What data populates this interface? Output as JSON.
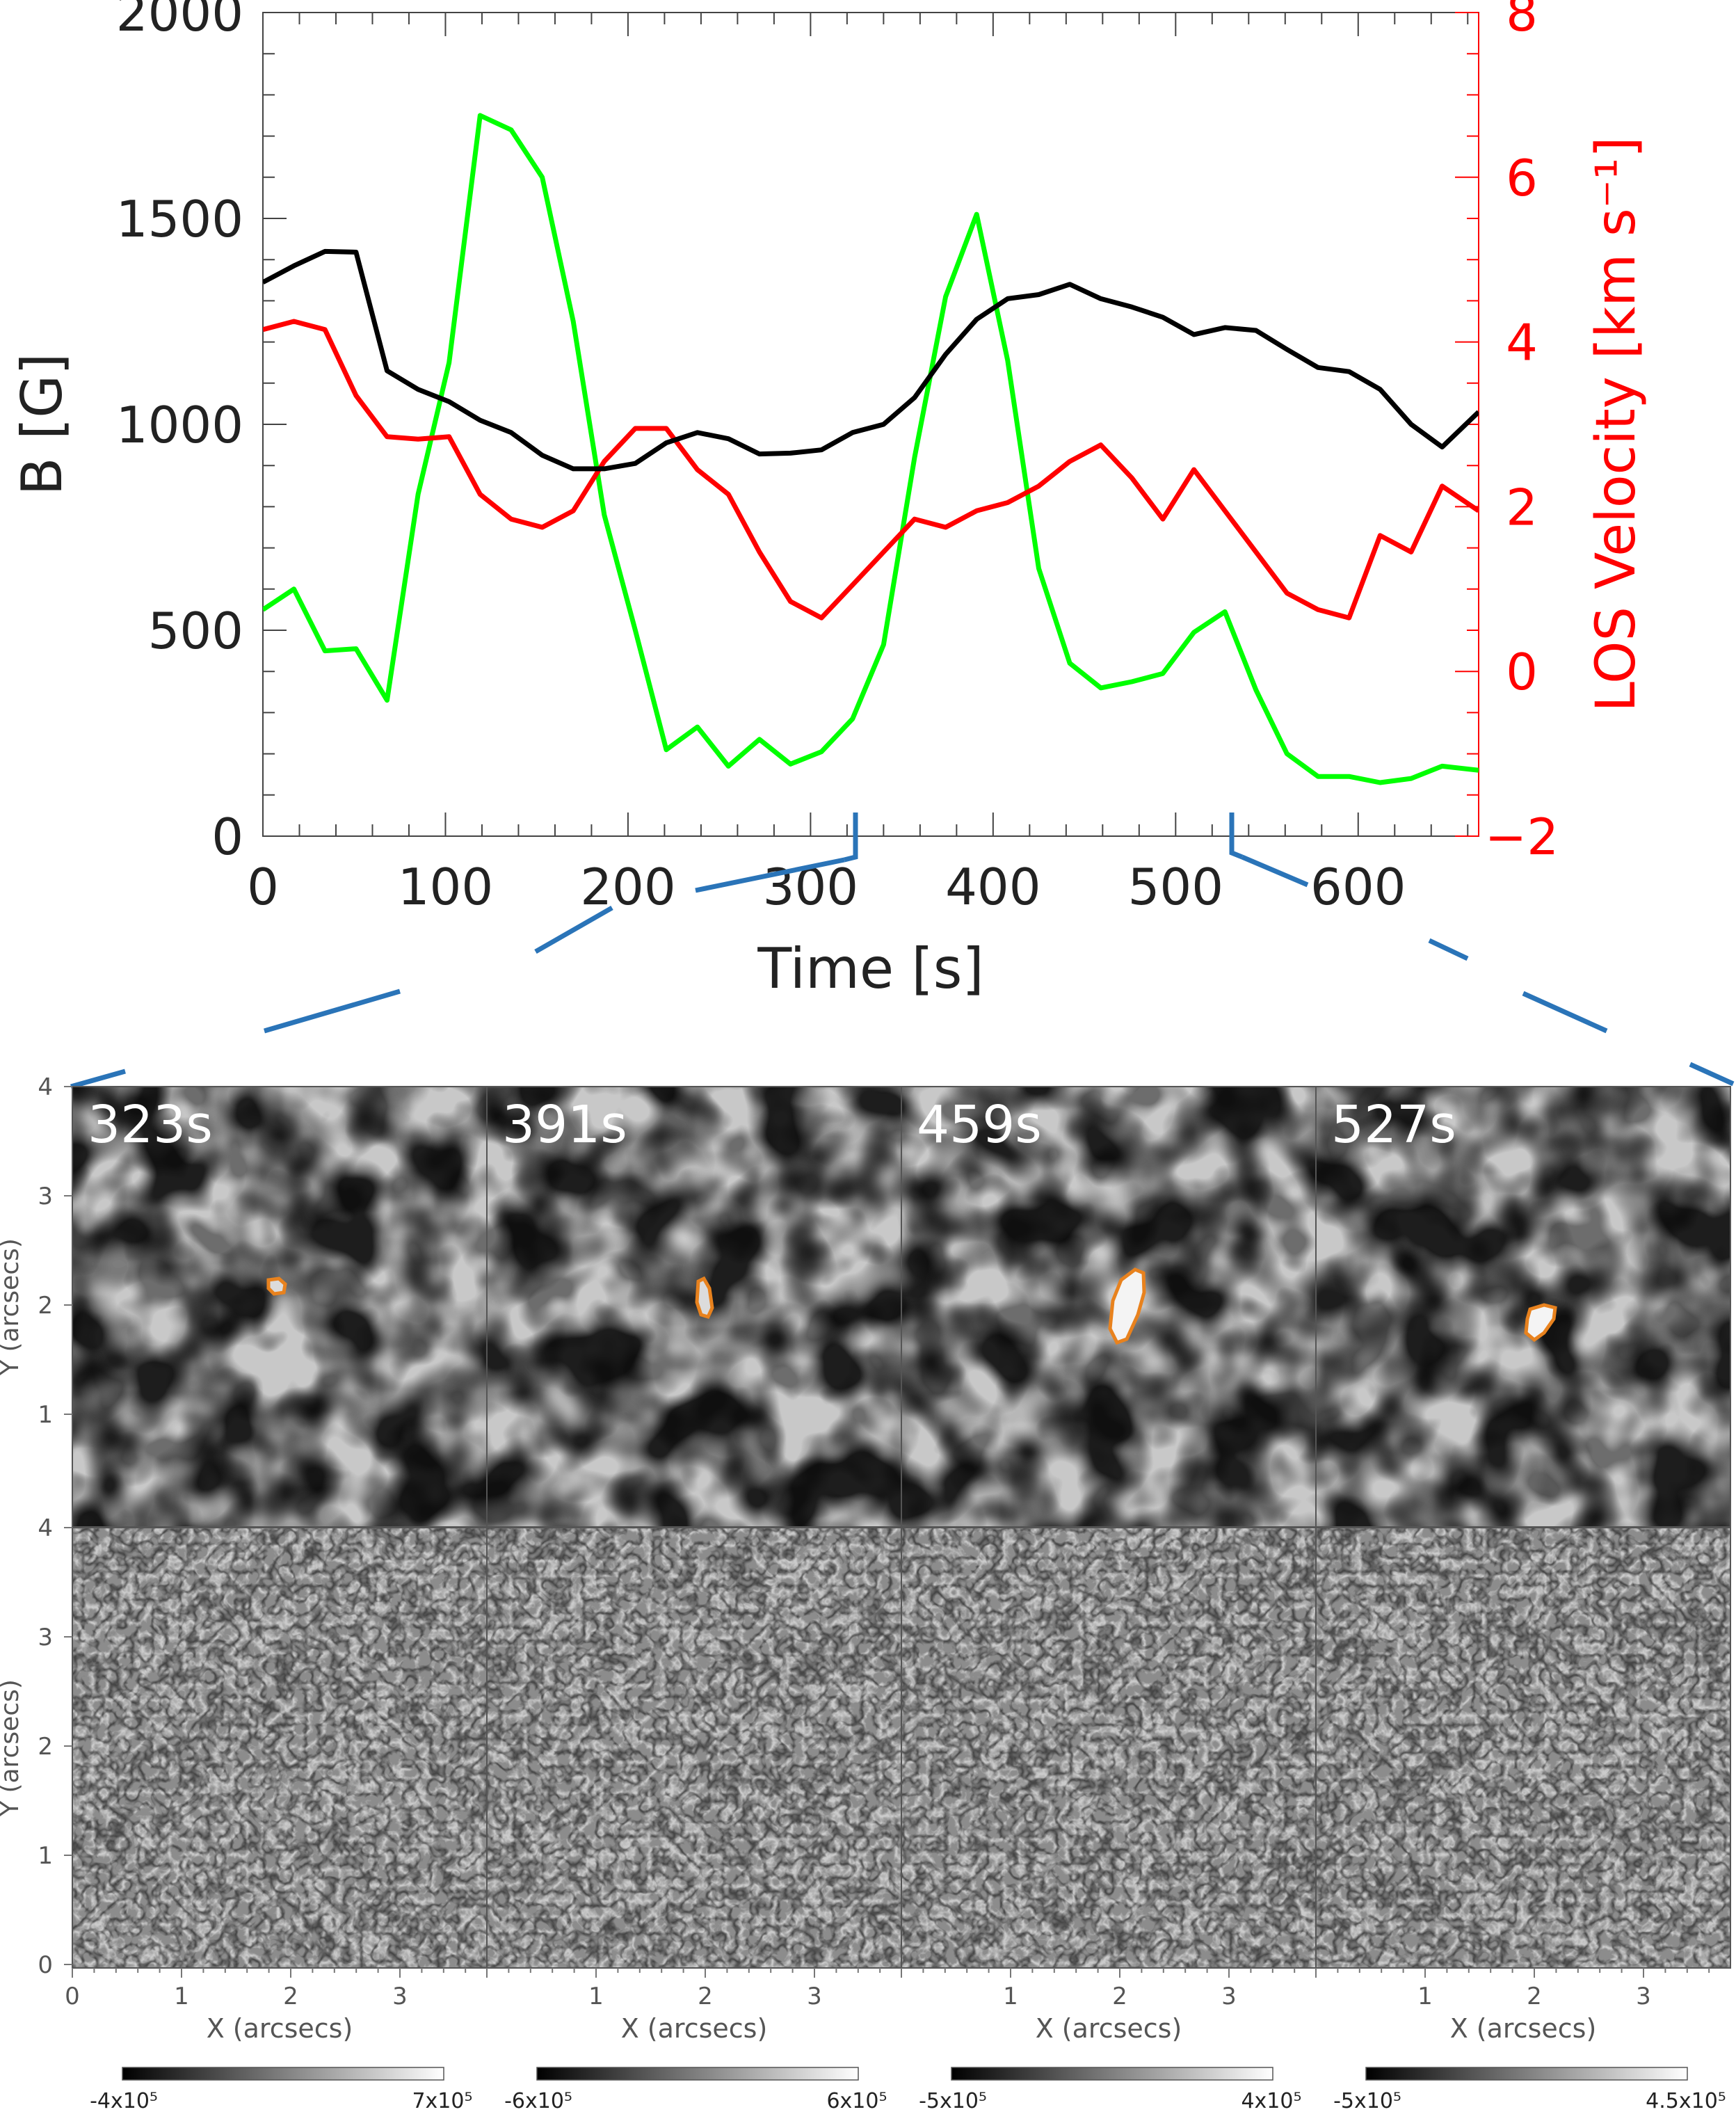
{
  "colors": {
    "black_series": "#000000",
    "red_series": "#ff0000",
    "green_series": "#00ff00",
    "connector": "#2a74b8",
    "contour": "#e8821e",
    "axis_gray": "#444444"
  },
  "chart_data": [
    {
      "type": "line",
      "title": "",
      "xlabel": "Time [s]",
      "ylabel": "B [G]",
      "ylabel_right": "LOS Velocity [km s⁻¹]",
      "xlim": [
        0,
        666
      ],
      "ylim": [
        0,
        2000
      ],
      "ylim_right": [
        -2,
        8
      ],
      "x_ticks": [
        0,
        100,
        200,
        300,
        400,
        500,
        600
      ],
      "y_ticks": [
        0,
        500,
        1000,
        1500,
        2000
      ],
      "y_ticks_right": [
        -2,
        0,
        2,
        4,
        6,
        8
      ],
      "x_tick_labels": [
        "0",
        "100",
        "200",
        "300",
        "400",
        "500",
        "600"
      ],
      "y_tick_labels": [
        "0",
        "500",
        "1000",
        "1500",
        "2000"
      ],
      "y_tick_labels_right": [
        "−2",
        "0",
        "2",
        "4",
        "6",
        "8"
      ],
      "x": [
        0,
        17,
        34,
        51,
        68,
        85,
        102,
        119,
        136,
        153,
        170,
        187,
        204,
        221,
        238,
        255,
        272,
        289,
        306,
        323,
        340,
        357,
        374,
        391,
        408,
        425,
        442,
        459,
        476,
        493,
        510,
        527,
        544,
        561,
        578,
        595,
        612,
        629,
        646,
        666
      ],
      "series": [
        {
          "name": "B (black)",
          "color": "#000000",
          "axis": "left",
          "values": [
            1345,
            1385,
            1420,
            1418,
            1130,
            1085,
            1055,
            1010,
            980,
            925,
            892,
            892,
            905,
            955,
            980,
            965,
            928,
            930,
            938,
            980,
            1000,
            1065,
            1170,
            1255,
            1305,
            1315,
            1340,
            1305,
            1285,
            1260,
            1218,
            1235,
            1228,
            1182,
            1138,
            1128,
            1085,
            1000,
            945,
            1030
          ]
        },
        {
          "name": "LOS velocity (red)",
          "color": "#ff0000",
          "axis": "right",
          "values": [
            4.15,
            4.25,
            4.15,
            3.35,
            2.85,
            2.82,
            2.85,
            2.15,
            1.85,
            1.75,
            1.95,
            2.55,
            2.95,
            2.95,
            2.45,
            2.15,
            1.45,
            0.85,
            0.65,
            1.05,
            1.45,
            1.85,
            1.75,
            1.95,
            2.05,
            2.25,
            2.55,
            2.75,
            2.35,
            1.85,
            2.45,
            1.95,
            1.45,
            0.95,
            0.75,
            0.65,
            1.65,
            1.45,
            2.25,
            1.95
          ]
        },
        {
          "name": "green",
          "color": "#00ff00",
          "axis": "left",
          "values": [
            550,
            600,
            450,
            455,
            330,
            830,
            1150,
            1750,
            1715,
            1600,
            1250,
            780,
            500,
            210,
            265,
            170,
            235,
            175,
            205,
            285,
            465,
            920,
            1310,
            1510,
            1155,
            650,
            420,
            360,
            375,
            395,
            495,
            545,
            355,
            200,
            145,
            145,
            130,
            140,
            170,
            160
          ]
        }
      ]
    },
    {
      "type": "heatmap",
      "row": "top",
      "description_label": "",
      "xlabel": "",
      "ylabel": "Y (arcsecs)",
      "ylim": [
        0,
        4
      ],
      "y_ticks": [
        1,
        2,
        3,
        4
      ],
      "y_tick_labels": [
        "1",
        "2",
        "3",
        "4"
      ],
      "panel_times": [
        "323s",
        "391s",
        "459s",
        "527s"
      ]
    },
    {
      "type": "heatmap",
      "row": "bottom",
      "xlabel": "X (arcsecs)",
      "ylabel": "Y (arcsecs)",
      "xlim": [
        0,
        3.8
      ],
      "ylim": [
        0,
        4
      ],
      "x_tick_labels_first": [
        "0",
        "1",
        "2",
        "3"
      ],
      "x_tick_labels_other": [
        "1",
        "2",
        "3"
      ],
      "y_ticks": [
        0,
        1,
        2,
        3,
        4
      ],
      "y_tick_labels": [
        "0",
        "1",
        "2",
        "3",
        "4"
      ],
      "colorbars": [
        {
          "min": "-4x10⁵",
          "max": "7x10⁵"
        },
        {
          "min": "-6x10⁵",
          "max": "6x10⁵"
        },
        {
          "min": "-5x10⁵",
          "max": "4x10⁵"
        },
        {
          "min": "-5x10⁵",
          "max": "4.5x10⁵"
        }
      ]
    }
  ]
}
